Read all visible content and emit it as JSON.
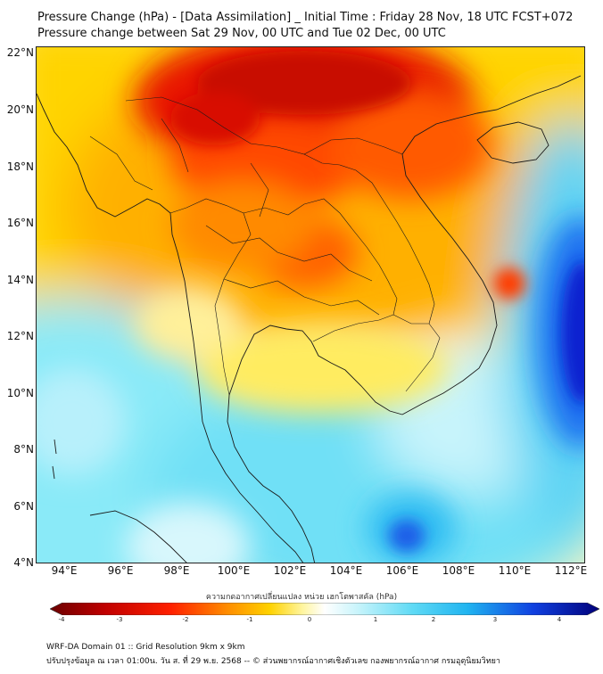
{
  "title": {
    "line1": "Pressure Change (hPa) - [Data Assimilation] _ Initial Time : Friday 28 Nov, 18 UTC FCST+072",
    "line2": "Pressure change between Sat 29 Nov, 00 UTC and Tue 02 Dec, 00 UTC"
  },
  "map": {
    "lon_range": [
      93,
      112.5
    ],
    "lat_range": [
      4,
      22.2
    ],
    "lat_ticks": [
      "22°N",
      "20°N",
      "18°N",
      "16°N",
      "14°N",
      "12°N",
      "10°N",
      "8°N",
      "6°N",
      "4°N"
    ],
    "lon_ticks": [
      "94°E",
      "96°E",
      "98°E",
      "100°E",
      "102°E",
      "104°E",
      "106°E",
      "108°E",
      "110°E",
      "112°E"
    ],
    "colors": {
      "positive_max": "#b80000",
      "positive_mid": "#ff8a00",
      "zero": "#ffffff",
      "negative_mid": "#2ecbf2",
      "negative_max": "#0018c8"
    }
  },
  "colorbar": {
    "label": "ความกดอากาศเปลี่ยนแปลง หน่วย เฮกโตพาสคัล (hPa)",
    "ticks": [
      "-4",
      "-3",
      "-2",
      "-1",
      "0",
      "1",
      "2",
      "3",
      "4"
    ],
    "range": [
      -4,
      4
    ]
  },
  "footer": {
    "line1": "WRF-DA Domain 01 :: Grid Resolution 9km x 9km",
    "line2": "ปรับปรุงข้อมูล ณ เวลา 01:00น. วัน ส. ที่ 29 พ.ย. 2568 -- © ส่วนพยากรณ์อากาศเชิงตัวเลข กองพยากรณ์อากาศ กรมอุตุนิยมวิทยา"
  }
}
